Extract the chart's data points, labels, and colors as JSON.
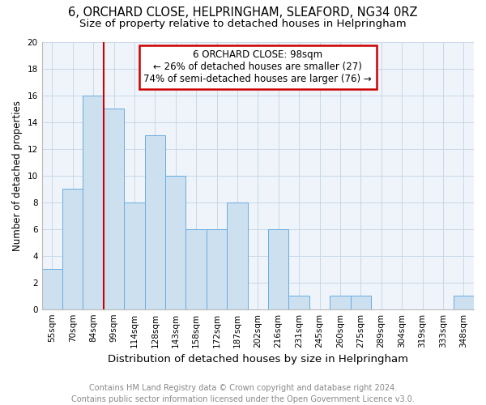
{
  "title1": "6, ORCHARD CLOSE, HELPRINGHAM, SLEAFORD, NG34 0RZ",
  "title2": "Size of property relative to detached houses in Helpringham",
  "xlabel": "Distribution of detached houses by size in Helpringham",
  "ylabel": "Number of detached properties",
  "categories": [
    "55sqm",
    "70sqm",
    "84sqm",
    "99sqm",
    "114sqm",
    "128sqm",
    "143sqm",
    "158sqm",
    "172sqm",
    "187sqm",
    "202sqm",
    "216sqm",
    "231sqm",
    "245sqm",
    "260sqm",
    "275sqm",
    "289sqm",
    "304sqm",
    "319sqm",
    "333sqm",
    "348sqm"
  ],
  "values": [
    3,
    9,
    16,
    15,
    8,
    13,
    10,
    6,
    6,
    8,
    0,
    6,
    1,
    0,
    1,
    1,
    0,
    0,
    0,
    0,
    1
  ],
  "bar_color": "#cce0f0",
  "bar_edge_color": "#6aace0",
  "annotation_box_text_line1": "6 ORCHARD CLOSE: 98sqm",
  "annotation_box_text_line2": "← 26% of detached houses are smaller (27)",
  "annotation_box_text_line3": "74% of semi-detached houses are larger (76) →",
  "box_edge_color": "#cc0000",
  "vline_color": "#cc0000",
  "vline_x_index": 3,
  "ylim": [
    0,
    20
  ],
  "yticks": [
    0,
    2,
    4,
    6,
    8,
    10,
    12,
    14,
    16,
    18,
    20
  ],
  "footer": "Contains HM Land Registry data © Crown copyright and database right 2024.\nContains public sector information licensed under the Open Government Licence v3.0.",
  "title1_fontsize": 10.5,
  "title2_fontsize": 9.5,
  "xlabel_fontsize": 9.5,
  "ylabel_fontsize": 8.5,
  "tick_fontsize": 7.5,
  "annotation_fontsize": 8.5,
  "footer_fontsize": 7,
  "grid_color": "#c8d8e8",
  "bg_color": "#eef4fa"
}
